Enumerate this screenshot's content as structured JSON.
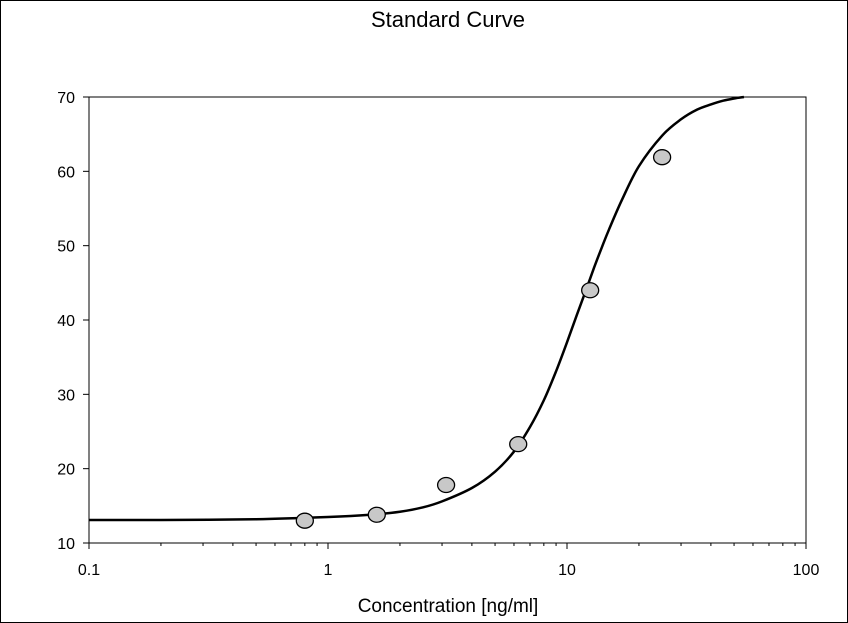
{
  "chart_data": {
    "type": "scatter",
    "title": "Standard Curve",
    "xlabel": "Concentration [ng/ml]",
    "ylabel": "",
    "x_scale": "log",
    "xlim": [
      0.1,
      100
    ],
    "ylim": [
      10,
      70
    ],
    "x_ticks": [
      0.1,
      1,
      10,
      100
    ],
    "x_tick_labels": [
      "0.1",
      "1",
      "10",
      "100"
    ],
    "y_ticks": [
      10,
      20,
      30,
      40,
      50,
      60,
      70
    ],
    "y_tick_labels": [
      "10",
      "20",
      "30",
      "40",
      "50",
      "60",
      "70"
    ],
    "grid": false,
    "legend": "none",
    "series": [
      {
        "kind": "points",
        "marker_color": "#c8c8c8",
        "x": [
          0.8,
          1.6,
          3.12,
          6.25,
          12.5,
          25
        ],
        "y": [
          13.0,
          13.8,
          17.8,
          23.3,
          44.0,
          61.9
        ]
      },
      {
        "kind": "fit-line",
        "line_color": "#000000",
        "x": [
          0.1,
          0.2,
          0.5,
          1,
          1.5,
          2,
          2.5,
          3,
          4,
          5,
          6,
          7,
          8,
          9,
          10,
          11,
          12,
          13,
          14,
          15,
          17,
          20,
          25,
          30,
          35,
          40,
          45,
          50,
          55
        ],
        "y": [
          13.1,
          13.1,
          13.2,
          13.5,
          13.8,
          14.2,
          14.8,
          15.6,
          17.4,
          19.6,
          22.3,
          25.6,
          29.2,
          33.1,
          37.0,
          40.7,
          44.0,
          47.1,
          49.8,
          52.2,
          56.2,
          60.7,
          64.8,
          67.0,
          68.3,
          69.0,
          69.5,
          69.8,
          70.0
        ]
      }
    ]
  }
}
